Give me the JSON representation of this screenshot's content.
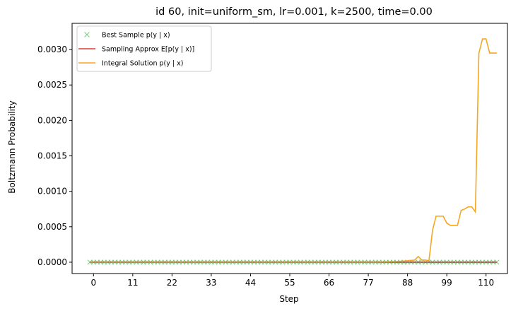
{
  "chart_data": {
    "type": "line",
    "title": "id 60, init=uniform_sm, lr=0.001, k=2500, time=0.00",
    "xlabel": "Step",
    "ylabel": "Boltzmann Probability",
    "xlim": [
      -6,
      116
    ],
    "ylim": [
      -0.00016,
      0.00337
    ],
    "xticks": [
      0,
      11,
      22,
      33,
      44,
      55,
      66,
      77,
      88,
      99,
      110
    ],
    "yticks": [
      0.0,
      0.0005,
      0.001,
      0.0015,
      0.002,
      0.0025,
      0.003
    ],
    "ytick_labels": [
      "0.0000",
      "0.0005",
      "0.0010",
      "0.0015",
      "0.0020",
      "0.0025",
      "0.0030"
    ],
    "grid": false,
    "legend_position": "top-left",
    "series": [
      {
        "name": "Best Sample p(y | x)",
        "marker": "x",
        "color": "#77cc77",
        "x": [
          -1,
          0,
          1,
          2,
          3,
          4,
          5,
          6,
          7,
          8,
          9,
          10,
          11,
          12,
          13,
          14,
          15,
          16,
          17,
          18,
          19,
          20,
          21,
          22,
          23,
          24,
          25,
          26,
          27,
          28,
          29,
          30,
          31,
          32,
          33,
          34,
          35,
          36,
          37,
          38,
          39,
          40,
          41,
          42,
          43,
          44,
          45,
          46,
          47,
          48,
          49,
          50,
          51,
          52,
          53,
          54,
          55,
          56,
          57,
          58,
          59,
          60,
          61,
          62,
          63,
          64,
          65,
          66,
          67,
          68,
          69,
          70,
          71,
          72,
          73,
          74,
          75,
          76,
          77,
          78,
          79,
          80,
          81,
          82,
          83,
          84,
          85,
          86,
          87,
          88,
          89,
          90,
          91,
          92,
          93,
          94,
          95,
          96,
          97,
          98,
          99,
          100,
          101,
          102,
          103,
          104,
          105,
          106,
          107,
          108,
          109,
          110,
          111,
          112,
          113
        ],
        "values": [
          0,
          0,
          0,
          0,
          0,
          0,
          0,
          0,
          0,
          0,
          0,
          0,
          0,
          0,
          0,
          0,
          0,
          0,
          0,
          0,
          0,
          0,
          0,
          0,
          0,
          0,
          0,
          0,
          0,
          0,
          0,
          0,
          0,
          0,
          0,
          0,
          0,
          0,
          0,
          0,
          0,
          0,
          0,
          0,
          0,
          0,
          0,
          0,
          0,
          0,
          0,
          0,
          0,
          0,
          0,
          0,
          0,
          0,
          0,
          0,
          0,
          0,
          0,
          0,
          0,
          0,
          0,
          0,
          0,
          0,
          0,
          0,
          0,
          0,
          0,
          0,
          0,
          0,
          0,
          0,
          0,
          0,
          0,
          0,
          0,
          0,
          0,
          0,
          0,
          0,
          0,
          0,
          0,
          0,
          0,
          0,
          0,
          0,
          0,
          0,
          0,
          0,
          0,
          0,
          0,
          0,
          0,
          0,
          0,
          0,
          0,
          0,
          0,
          0,
          0
        ]
      },
      {
        "name": "Sampling Approx E[p(y | x)]",
        "color": "#e03a3a",
        "x": [
          -1,
          113
        ],
        "values": [
          0,
          0
        ]
      },
      {
        "name": "Integral Solution p(y | x)",
        "color": "#f5a623",
        "x": [
          -1,
          0,
          10,
          20,
          30,
          40,
          50,
          60,
          70,
          80,
          85,
          88,
          90,
          91,
          92,
          93,
          94,
          95,
          96,
          97,
          98,
          99,
          100,
          101,
          102,
          103,
          104,
          105,
          106,
          107,
          108,
          109,
          110,
          111,
          112,
          113
        ],
        "values": [
          0,
          0,
          0,
          0,
          0,
          0,
          0,
          0,
          0,
          0,
          1e-05,
          2e-05,
          3e-05,
          8e-05,
          3e-05,
          3e-05,
          2e-05,
          0.00045,
          0.00065,
          0.00065,
          0.00065,
          0.00055,
          0.00052,
          0.00052,
          0.00052,
          0.00073,
          0.00075,
          0.00078,
          0.00078,
          0.00071,
          0.00295,
          0.00315,
          0.00315,
          0.00295,
          0.00295,
          0.00295
        ]
      }
    ]
  }
}
